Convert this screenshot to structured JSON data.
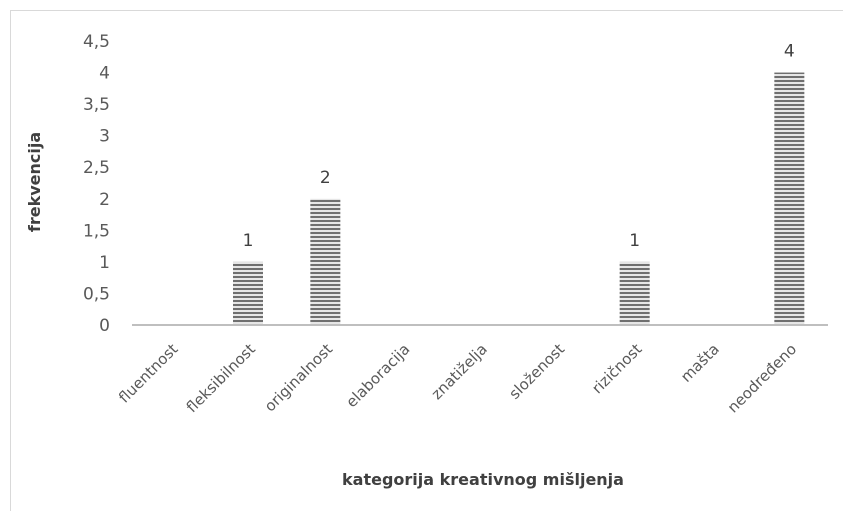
{
  "chart_data": {
    "type": "bar",
    "title": "",
    "xlabel": "kategorija kreativnog mišljenja",
    "ylabel": "frekvencija",
    "categories": [
      "fluentnost",
      "fleksibilnost",
      "originalnost",
      "elaboracija",
      "znatiželja",
      "složenost",
      "rizičnost",
      "mašta",
      "neodređeno"
    ],
    "values": [
      0,
      1,
      2,
      0,
      0,
      0,
      1,
      0,
      4
    ],
    "data_labels": [
      "",
      "1",
      "2",
      "",
      "",
      "",
      "1",
      "",
      "4"
    ],
    "y_ticks": [
      "0",
      "0,5",
      "1",
      "1,5",
      "2",
      "2,5",
      "3",
      "3,5",
      "4",
      "4,5"
    ],
    "ylim": [
      0,
      4.5
    ],
    "grid": false,
    "bar_pattern": "horizontal-stripes",
    "bar_color": "#7f7f7f",
    "legend": "none"
  }
}
